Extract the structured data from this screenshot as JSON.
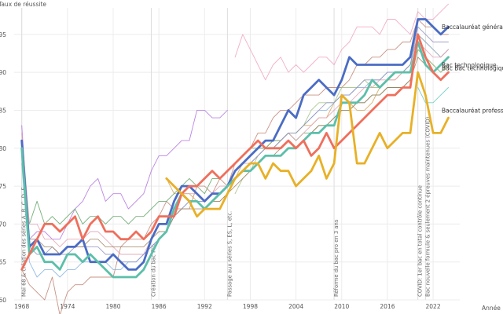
{
  "chart_data": {
    "type": "line",
    "xlabel": "Année",
    "ylabel": "Taux de réussite",
    "xlim": [
      1967,
      2025.5
    ],
    "ylim": [
      60,
      98.5
    ],
    "x_ticks": [
      1968,
      1974,
      1980,
      1986,
      1992,
      1998,
      2004,
      2010,
      2016,
      2022
    ],
    "y_ticks": [
      60,
      65,
      70,
      75,
      80,
      85,
      90,
      95
    ],
    "y_tick_labels": [
      "60",
      "65",
      "70",
      "75",
      "80",
      "85",
      "90",
      "95"
    ],
    "grid": true,
    "x": [
      1968,
      1969,
      1970,
      1971,
      1972,
      1973,
      1974,
      1975,
      1976,
      1977,
      1978,
      1979,
      1980,
      1981,
      1982,
      1983,
      1984,
      1985,
      1986,
      1987,
      1988,
      1989,
      1990,
      1991,
      1992,
      1993,
      1994,
      1995,
      1996,
      1997,
      1998,
      1999,
      2000,
      2001,
      2002,
      2003,
      2004,
      2005,
      2006,
      2007,
      2008,
      2009,
      2010,
      2011,
      2012,
      2013,
      2014,
      2015,
      2016,
      2017,
      2018,
      2019,
      2020,
      2021,
      2022,
      2023,
      2024
    ],
    "series": [
      {
        "name": "Baccalauréat général",
        "color": "#4a6cc4",
        "highlight": true,
        "values": [
          81,
          67,
          68,
          66,
          66,
          66,
          67,
          67,
          68,
          65,
          65,
          65,
          66,
          65,
          64,
          64,
          65,
          68,
          70,
          70,
          73,
          75,
          75,
          74,
          73,
          74,
          74,
          75,
          77,
          78,
          79,
          80,
          81,
          81,
          83,
          85,
          84,
          87,
          88,
          89,
          88,
          87,
          89,
          92,
          91,
          91,
          91,
          91,
          91,
          91,
          91,
          92,
          97,
          97,
          96,
          95,
          96
        ]
      },
      {
        "name": "Bac technologique",
        "color": "#5cbfa9",
        "highlight": true,
        "values": [
          80,
          66,
          67,
          65,
          65,
          64,
          66,
          66,
          65,
          66,
          65,
          64,
          63,
          63,
          63,
          63,
          64,
          66,
          68,
          69,
          72,
          74,
          73,
          73,
          72,
          73,
          74,
          75,
          76,
          77,
          77,
          78,
          79,
          79,
          79,
          80,
          80,
          81,
          82,
          82,
          83,
          83,
          86,
          86,
          86,
          87,
          89,
          88,
          89,
          90,
          90,
          90,
          94,
          91,
          90,
          91,
          92
        ]
      },
      {
        "name": "Bac Bac technologique",
        "color": "#ef6f5c",
        "highlight": true,
        "values": [
          null,
          null,
          null,
          null,
          null,
          null,
          null,
          null,
          null,
          null,
          null,
          null,
          null,
          null,
          null,
          null,
          null,
          null,
          null,
          null,
          null,
          null,
          null,
          null,
          null,
          null,
          null,
          null,
          null,
          null,
          null,
          null,
          null,
          null,
          null,
          null,
          null,
          null,
          null,
          null,
          null,
          null,
          null,
          null,
          null,
          null,
          null,
          null,
          null,
          null,
          null,
          null,
          null,
          null,
          null,
          null,
          null
        ]
      },
      {
        "name": "Bac Bac technologique (série)",
        "color": "#ef6f5c",
        "highlight": true,
        "values": [
          64,
          66,
          68,
          70,
          70,
          69,
          70,
          71,
          68,
          70,
          71,
          69,
          69,
          68,
          68,
          69,
          68,
          69,
          71,
          71,
          71,
          74,
          75,
          75,
          76,
          77,
          76,
          77,
          78,
          79,
          80,
          81,
          80,
          80,
          80,
          81,
          80,
          81,
          79,
          80,
          82,
          80,
          81,
          82,
          83,
          84,
          85,
          86,
          87,
          87,
          88,
          88,
          95,
          92,
          90,
          89,
          90
        ]
      },
      {
        "name": "Baccalauréat professionnel",
        "color": "#e8b026",
        "highlight": true,
        "values": [
          null,
          null,
          null,
          null,
          null,
          null,
          null,
          null,
          null,
          null,
          null,
          null,
          null,
          null,
          null,
          null,
          null,
          null,
          null,
          76,
          75,
          74,
          73,
          71,
          72,
          72,
          72,
          74,
          76,
          77,
          78,
          78,
          76,
          78,
          77,
          77,
          75,
          76,
          77,
          79,
          76,
          78,
          87,
          86,
          78,
          78,
          80,
          82,
          80,
          81,
          82,
          82,
          90,
          87,
          82,
          82,
          84
        ]
      },
      {
        "color": "#b070e0",
        "values": [
          83,
          68,
          69,
          69,
          68,
          68,
          70,
          72,
          73,
          75,
          76,
          73,
          74,
          74,
          72,
          73,
          74,
          77,
          79,
          79,
          80,
          81,
          81,
          85,
          85,
          84,
          84,
          85,
          null,
          null,
          null,
          null,
          null,
          null,
          null,
          null,
          null,
          null,
          null,
          null,
          null,
          null,
          null,
          null,
          null,
          null,
          null,
          null,
          null,
          null,
          null,
          null,
          null,
          null,
          null,
          null,
          null
        ]
      },
      {
        "color": "#f0a0c0",
        "values": [
          null,
          null,
          null,
          null,
          null,
          null,
          null,
          null,
          null,
          null,
          null,
          null,
          null,
          null,
          null,
          null,
          null,
          null,
          null,
          null,
          null,
          null,
          null,
          null,
          null,
          null,
          null,
          null,
          92,
          95,
          93,
          91,
          89,
          91,
          92,
          90,
          91,
          90,
          91,
          92,
          92,
          91,
          93,
          94,
          96,
          96,
          96,
          95,
          97,
          97,
          96,
          95,
          98,
          97,
          97,
          98,
          99
        ]
      },
      {
        "color": "#c08070",
        "values": [
          64,
          62,
          61,
          60,
          63,
          58,
          61,
          62,
          62,
          63,
          63,
          63,
          63,
          67,
          68,
          68,
          68,
          70,
          71,
          73,
          72,
          72,
          72,
          75,
          75,
          74,
          76,
          75,
          78,
          79,
          80,
          82,
          82,
          84,
          85,
          85,
          86,
          87,
          87,
          87,
          88,
          88,
          88,
          89,
          91,
          91,
          92,
          92,
          93,
          93,
          94,
          94,
          97,
          96,
          96,
          95,
          95
        ]
      },
      {
        "color": "#d4a050",
        "values": [
          null,
          null,
          null,
          null,
          null,
          null,
          null,
          null,
          null,
          null,
          null,
          null,
          null,
          null,
          null,
          null,
          null,
          null,
          null,
          76,
          74,
          74,
          74,
          73,
          72,
          73,
          73,
          74,
          76,
          78,
          79,
          80,
          80,
          81,
          81,
          82,
          82,
          83,
          83,
          84,
          84,
          86,
          87,
          86,
          85,
          85,
          86,
          88,
          89,
          89,
          90,
          91,
          95,
          94,
          93,
          92,
          93
        ]
      },
      {
        "color": "#5aa060",
        "values": [
          80,
          70,
          73,
          70,
          71,
          70,
          71,
          72,
          70,
          71,
          71,
          70,
          71,
          71,
          70,
          71,
          71,
          72,
          73,
          73,
          74,
          75,
          76,
          75,
          74,
          76,
          76,
          77,
          78,
          79,
          80,
          80,
          80,
          81,
          81,
          82,
          81,
          82,
          82,
          83,
          83,
          84,
          85,
          85,
          86,
          86,
          87,
          87,
          88,
          88,
          88,
          89,
          93,
          92,
          91,
          90,
          91
        ]
      },
      {
        "color": "#80b0e0",
        "values": [
          78,
          65,
          63,
          64,
          64,
          63,
          64,
          64,
          65,
          65,
          65,
          65,
          64,
          64,
          65,
          65,
          66,
          67,
          68,
          69,
          71,
          72,
          73,
          73,
          73,
          74,
          74,
          75,
          76,
          77,
          78,
          79,
          80,
          80,
          81,
          82,
          82,
          83,
          84,
          85,
          85,
          86,
          87,
          87,
          88,
          88,
          89,
          89,
          90,
          90,
          90,
          91,
          95,
          94,
          93,
          92,
          93
        ]
      },
      {
        "color": "#e0a0b0",
        "values": [
          82,
          70,
          70,
          68,
          68,
          67,
          68,
          68,
          68,
          69,
          69,
          68,
          67,
          66,
          66,
          66,
          66,
          68,
          70,
          70,
          72,
          74,
          74,
          74,
          73,
          74,
          75,
          75,
          77,
          78,
          78,
          79,
          80,
          80,
          81,
          82,
          81,
          82,
          83,
          84,
          84,
          85,
          86,
          86,
          87,
          88,
          88,
          89,
          89,
          89,
          90,
          90,
          94,
          93,
          92,
          92,
          93
        ]
      },
      {
        "color": "#a0c080",
        "values": [
          null,
          null,
          null,
          null,
          null,
          null,
          null,
          null,
          null,
          null,
          null,
          null,
          null,
          null,
          null,
          null,
          null,
          null,
          null,
          null,
          null,
          null,
          null,
          null,
          null,
          null,
          null,
          null,
          74,
          76,
          77,
          79,
          80,
          80,
          81,
          82,
          82,
          83,
          85,
          86,
          86,
          86,
          88,
          88,
          88,
          89,
          88,
          88,
          89,
          90,
          90,
          91,
          93,
          92,
          91,
          90,
          91
        ]
      },
      {
        "color": "#60c8c0",
        "values": [
          null,
          null,
          null,
          null,
          null,
          null,
          null,
          null,
          null,
          null,
          null,
          null,
          null,
          null,
          null,
          null,
          null,
          null,
          null,
          null,
          null,
          null,
          null,
          null,
          null,
          null,
          null,
          null,
          null,
          null,
          null,
          null,
          null,
          null,
          null,
          null,
          null,
          null,
          null,
          null,
          null,
          null,
          null,
          null,
          null,
          null,
          null,
          null,
          null,
          null,
          null,
          null,
          88,
          86,
          86,
          87,
          88
        ]
      },
      {
        "color": "#9090c0",
        "values": [
          81,
          67,
          66,
          66,
          67,
          66,
          66,
          67,
          67,
          67,
          67,
          66,
          66,
          65,
          65,
          65,
          66,
          67,
          68,
          69,
          71,
          72,
          73,
          73,
          73,
          74,
          74,
          75,
          76,
          77,
          78,
          79,
          80,
          80,
          81,
          82,
          82,
          83,
          84,
          85,
          86,
          86,
          87,
          87,
          88,
          89,
          89,
          89,
          90,
          90,
          90,
          91,
          96,
          95,
          94,
          94,
          94
        ]
      },
      {
        "color": "#a08060",
        "values": [
          80,
          68,
          68,
          67,
          67,
          66,
          67,
          67,
          67,
          68,
          68,
          67,
          67,
          67,
          67,
          67,
          67,
          68,
          69,
          69,
          71,
          72,
          72,
          72,
          72,
          73,
          73,
          74,
          75,
          76,
          77,
          78,
          79,
          79,
          80,
          81,
          80,
          81,
          82,
          83,
          83,
          84,
          85,
          85,
          86,
          86,
          87,
          87,
          88,
          88,
          88,
          89,
          92,
          91,
          90,
          89,
          90
        ]
      }
    ],
    "end_labels": [
      {
        "text": "Baccalauréat général",
        "y": 96
      },
      {
        "text": "Bac technologique",
        "y": 91
      },
      {
        "text": "Bac Bac technologique",
        "y": 90.6
      },
      {
        "text": "Baccalauréat professionnel",
        "y": 85
      }
    ],
    "annotations": [
      {
        "x": 1968,
        "text": "Mai 68 & création des séries A, B, C, D, E"
      },
      {
        "x": 1985,
        "text": "Création du bac Pro"
      },
      {
        "x": 1995,
        "text": "Passage aux séries S, ES, L, etc."
      },
      {
        "x": 2009,
        "text": "Réforme du bac pro en 3 ans"
      },
      {
        "x": 2020,
        "text": "COVID: 1er bac en total contrôle continue"
      },
      {
        "x": 2021,
        "text": "Bac nouvelle formule & seulement 2 épreuves maintenues (COVID)"
      }
    ]
  }
}
